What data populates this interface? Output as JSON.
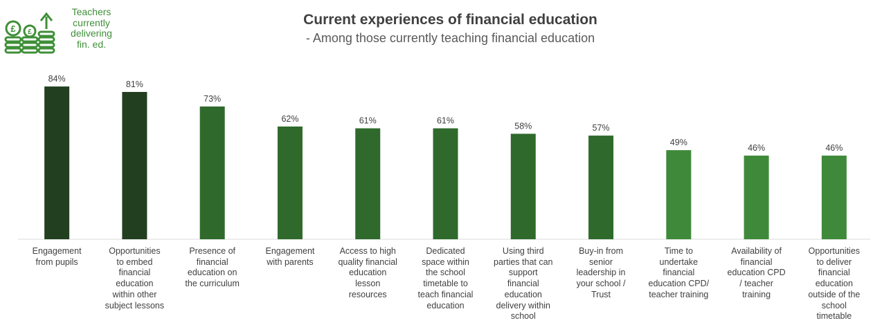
{
  "badge": {
    "label": "Teachers\ncurrently\ndelivering\nfin. ed.",
    "icon": "money-coins-icon",
    "color": "#3f8f38"
  },
  "chart_data": {
    "type": "bar",
    "title": "Current experiences of financial education",
    "subtitle": "- Among those currently teaching financial education",
    "categories": [
      "Engagement from pupils",
      "Opportunities to embed financial education within other subject lessons",
      "Presence of financial education on the curriculum",
      "Engagement with parents",
      "Access to high quality financial education lesson resources",
      "Dedicated space within the school timetable to teach financial education",
      "Using third parties that can support financial education delivery within school",
      "Buy-in from senior leadership in your school / Trust",
      "Time to undertake financial education CPD/ teacher training",
      "Availability of financial education CPD / teacher training",
      "Opportunities to deliver financial education outside of the school timetable"
    ],
    "category_lines": [
      [
        "Engagement",
        "from pupils"
      ],
      [
        "Opportunities",
        "to embed",
        "financial",
        "education",
        "within other",
        "subject lessons"
      ],
      [
        "Presence of",
        "financial",
        "education on",
        "the curriculum"
      ],
      [
        "Engagement",
        "with parents"
      ],
      [
        "Access to high",
        "quality financial",
        "education",
        "lesson",
        "resources"
      ],
      [
        "Dedicated",
        "space within",
        "the school",
        "timetable to",
        "teach financial",
        "education"
      ],
      [
        "Using third",
        "parties that can",
        "support",
        "financial",
        "education",
        "delivery within",
        "school"
      ],
      [
        "Buy-in from",
        "senior",
        "leadership in",
        "your school /",
        "Trust"
      ],
      [
        "Time to",
        "undertake",
        "financial",
        "education CPD/",
        "teacher training"
      ],
      [
        "Availability of",
        "financial",
        "education CPD",
        "/ teacher",
        "training"
      ],
      [
        "Opportunities",
        "to deliver",
        "financial",
        "education",
        "outside of the",
        "school",
        "timetable"
      ]
    ],
    "values": [
      84,
      81,
      73,
      62,
      61,
      61,
      58,
      57,
      49,
      46,
      46
    ],
    "value_labels": [
      "84%",
      "81%",
      "73%",
      "62%",
      "61%",
      "61%",
      "58%",
      "57%",
      "49%",
      "46%",
      "46%"
    ],
    "bar_colors": [
      "#22401f",
      "#22401f",
      "#2f6a2c",
      "#2f6a2c",
      "#2f6a2c",
      "#2f6a2c",
      "#2f6a2c",
      "#2f6a2c",
      "#3f8a3a",
      "#3f8a3a",
      "#3f8a3a"
    ],
    "ylim": [
      0,
      100
    ],
    "grid": false,
    "legend": "none"
  }
}
